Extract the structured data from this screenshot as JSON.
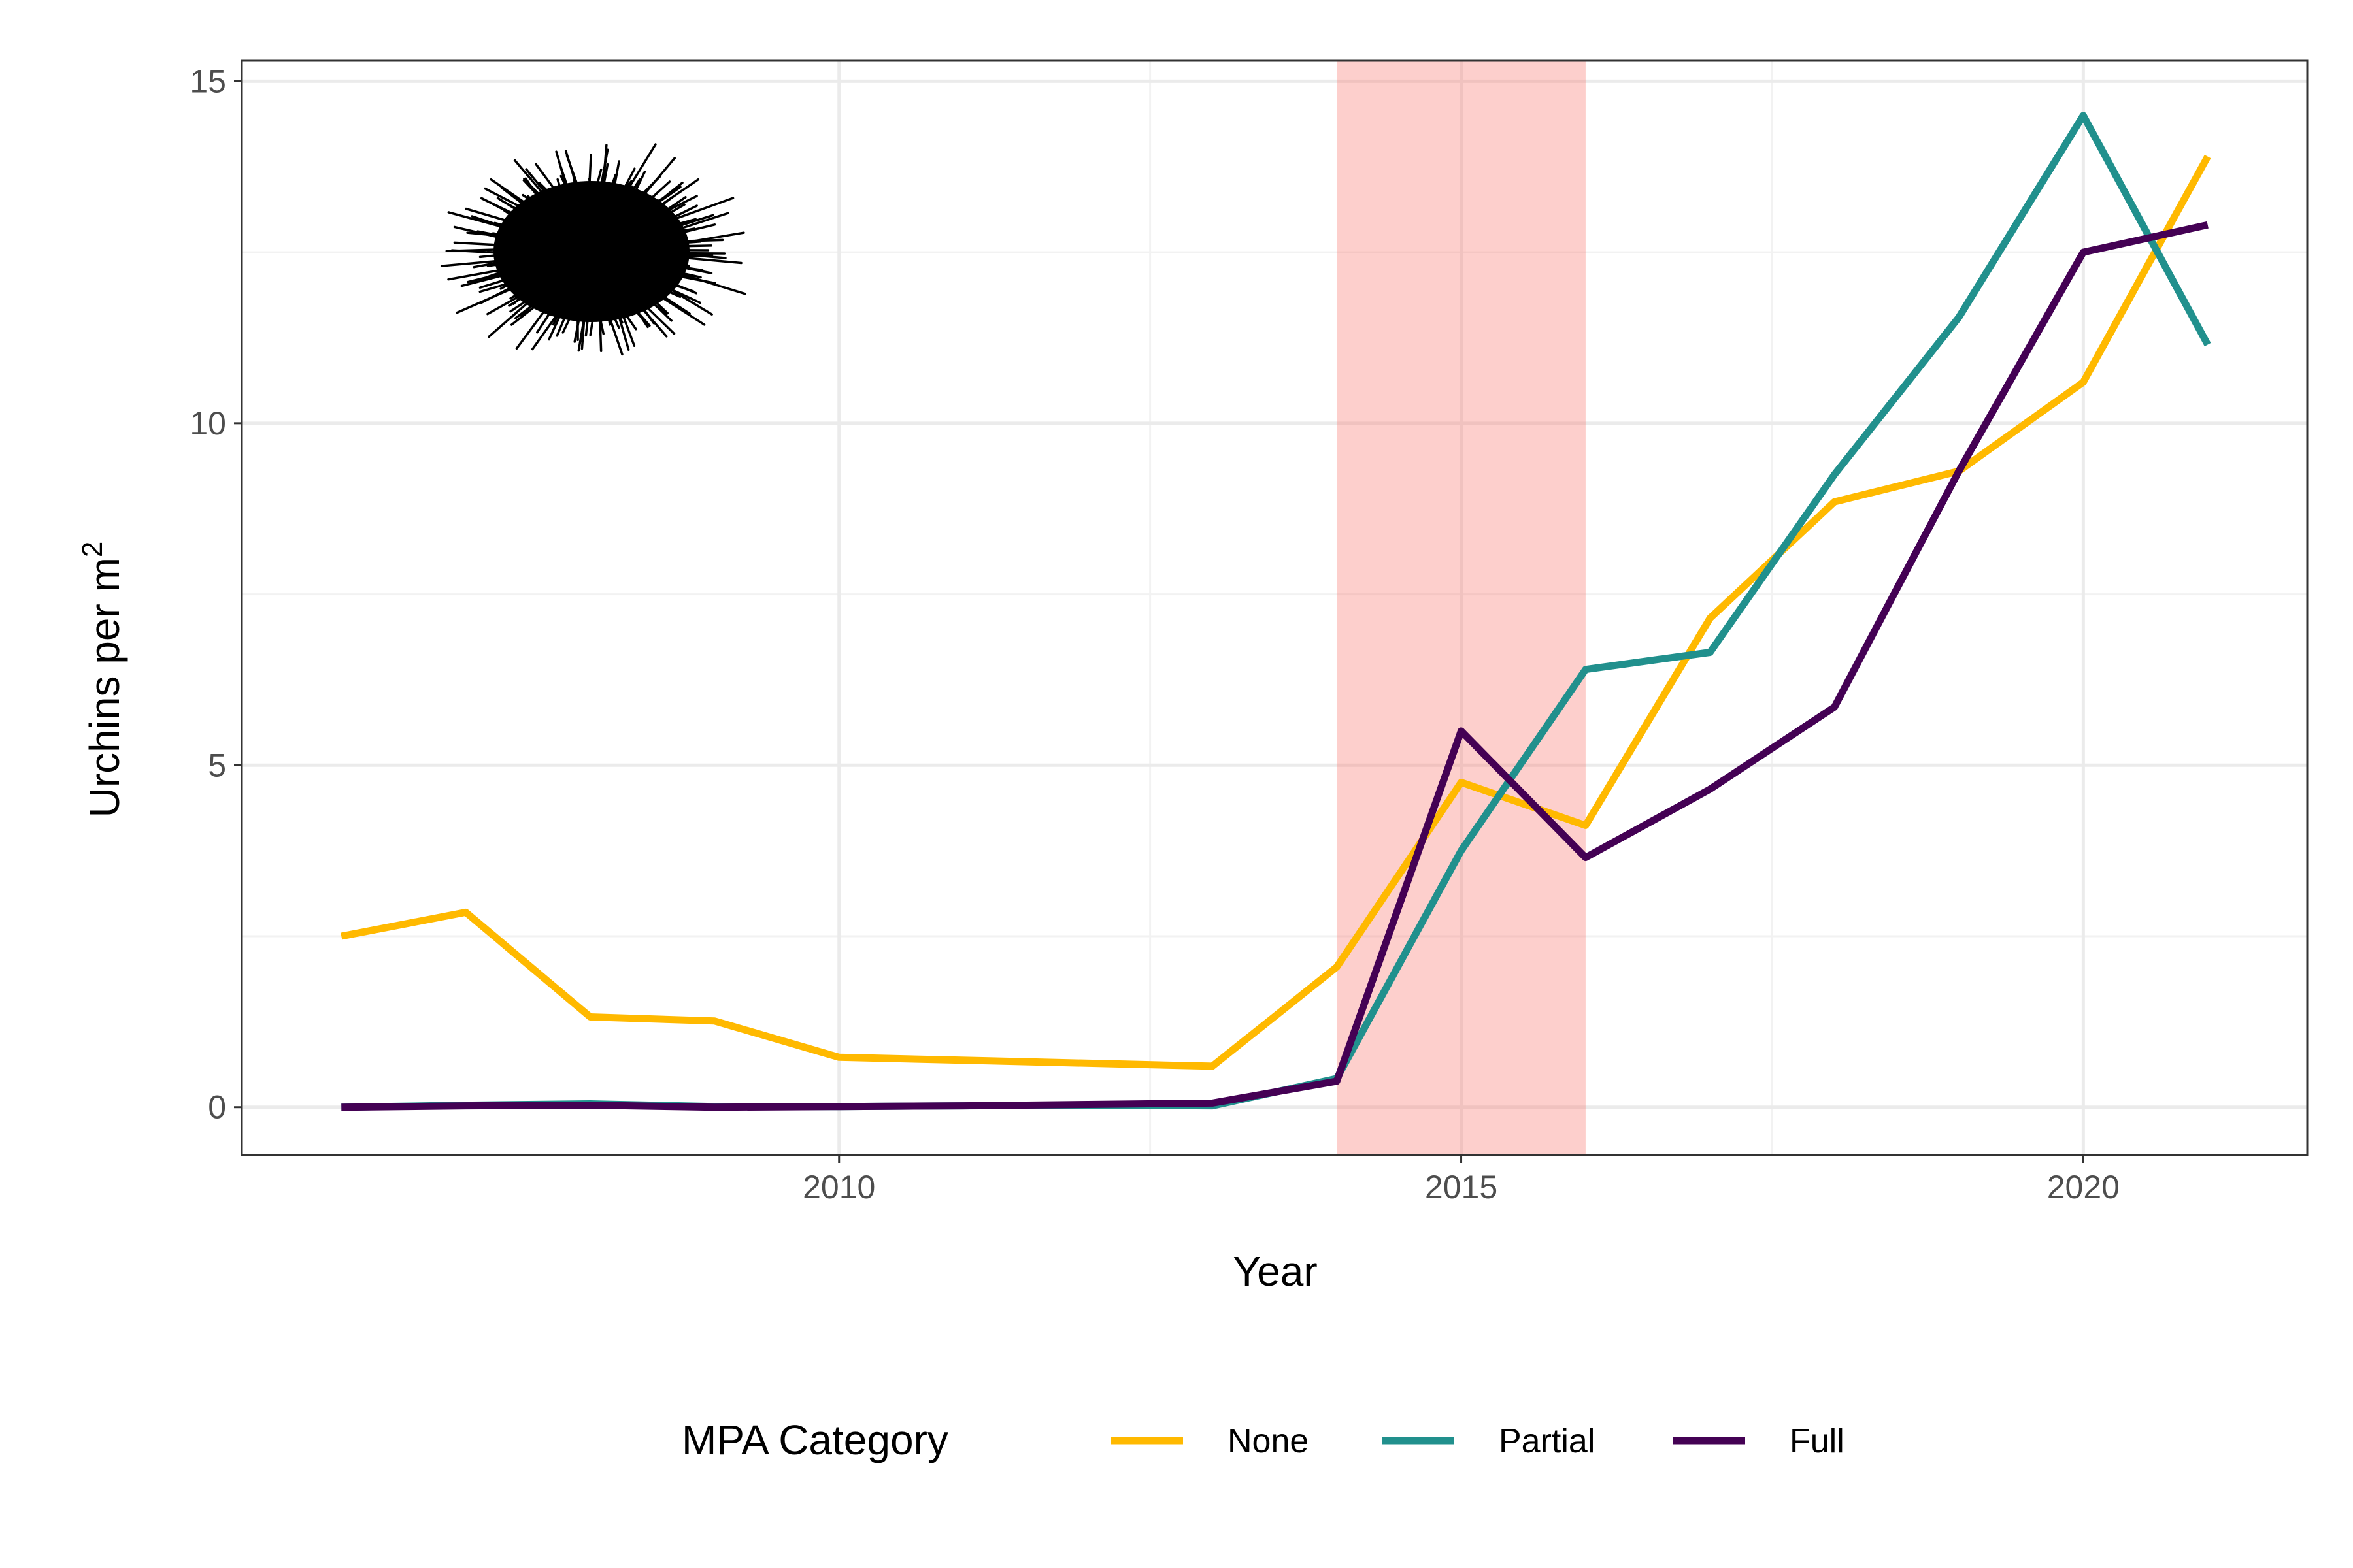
{
  "chart_data": {
    "type": "line",
    "xlabel": "Year",
    "ylabel": "Urchins per m",
    "ylabel_superscript": "2",
    "xlim": [
      2005.2,
      2021.8
    ],
    "ylim": [
      -0.7,
      15.3
    ],
    "x_ticks": [
      2010,
      2015,
      2020
    ],
    "y_ticks": [
      0,
      5,
      10,
      15
    ],
    "grid": true,
    "shaded_region": {
      "x_start": 2014,
      "x_end": 2016,
      "color": "#f8766d",
      "opacity": 0.35
    },
    "legend": {
      "title": "MPA Category",
      "position": "bottom"
    },
    "series": [
      {
        "name": "None",
        "color": "#ffb900",
        "x": [
          2006,
          2007,
          2008,
          2009,
          2010,
          2013,
          2014,
          2015,
          2016,
          2017,
          2018,
          2019,
          2020,
          2021
        ],
        "y": [
          2.5,
          2.85,
          1.32,
          1.26,
          0.73,
          0.6,
          2.05,
          4.75,
          4.12,
          7.15,
          8.85,
          9.3,
          10.6,
          13.9
        ]
      },
      {
        "name": "Partial",
        "color": "#21908d",
        "x": [
          2006,
          2007,
          2008,
          2009,
          2010,
          2011,
          2012,
          2013,
          2014,
          2015,
          2016,
          2017,
          2018,
          2019,
          2020,
          2021
        ],
        "y": [
          0.0,
          0.03,
          0.05,
          0.01,
          0.01,
          0.02,
          0.03,
          0.02,
          0.42,
          3.75,
          6.4,
          6.65,
          9.25,
          11.55,
          14.5,
          11.15
        ]
      },
      {
        "name": "Full",
        "color": "#440154",
        "x": [
          2006,
          2007,
          2008,
          2009,
          2010,
          2011,
          2012,
          2013,
          2014,
          2015,
          2016,
          2017,
          2018,
          2019,
          2020,
          2021
        ],
        "y": [
          0.0,
          0.02,
          0.03,
          0.0,
          0.01,
          0.02,
          0.04,
          0.06,
          0.38,
          5.5,
          3.65,
          4.65,
          5.85,
          9.3,
          12.5,
          12.9
        ]
      }
    ]
  },
  "decoration": {
    "icon": "sea-urchin-icon"
  }
}
